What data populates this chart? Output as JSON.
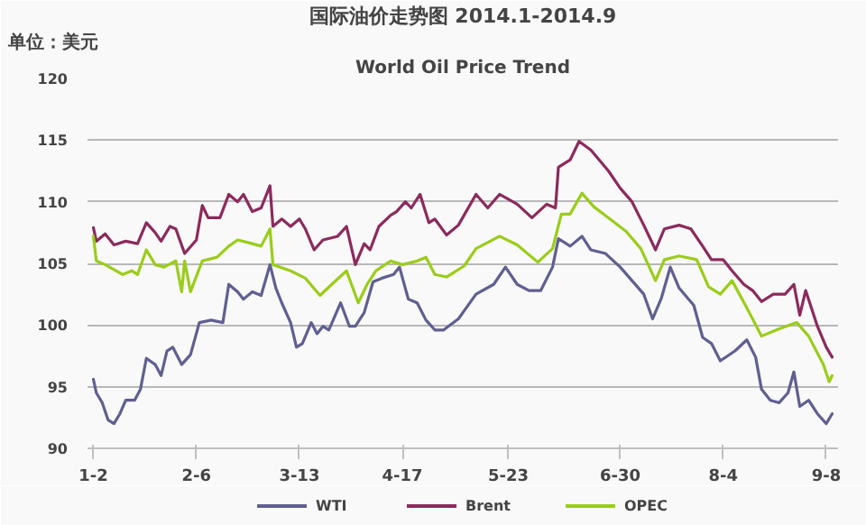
{
  "chart_data": {
    "type": "line",
    "title": "国际油价走势图 2014.1-2014.9",
    "subtitle": "World Oil Price Trend",
    "ylabel": "单位：美元",
    "xlim": [
      "2013-12-31",
      "2014-09-12"
    ],
    "xticks": [
      {
        "value": "2014-01-02",
        "label": "1-2"
      },
      {
        "value": "2014-02-06",
        "label": "2-6"
      },
      {
        "value": "2014-03-13",
        "label": "3-13"
      },
      {
        "value": "2014-04-17",
        "label": "4-17"
      },
      {
        "value": "2014-05-23",
        "label": "5-23"
      },
      {
        "value": "2014-06-30",
        "label": "6-30"
      },
      {
        "value": "2014-08-04",
        "label": "8-4"
      },
      {
        "value": "2014-09-08",
        "label": "9-8"
      }
    ],
    "ylim": [
      90,
      120
    ],
    "yticks": [
      90,
      95,
      100,
      105,
      110,
      115,
      120
    ],
    "grid": "y",
    "legend": "bottom",
    "series": [
      {
        "name": "WTI",
        "color": "#5f5f91",
        "x": [
          "2014-01-02",
          "2014-01-03",
          "2014-01-05",
          "2014-01-07",
          "2014-01-09",
          "2014-01-11",
          "2014-01-13",
          "2014-01-16",
          "2014-01-18",
          "2014-01-20",
          "2014-01-23",
          "2014-01-25",
          "2014-01-27",
          "2014-01-29",
          "2014-02-01",
          "2014-02-04",
          "2014-02-07",
          "2014-02-11",
          "2014-02-15",
          "2014-02-17",
          "2014-02-20",
          "2014-02-22",
          "2014-02-25",
          "2014-02-28",
          "2014-03-03",
          "2014-03-05",
          "2014-03-07",
          "2014-03-10",
          "2014-03-12",
          "2014-03-14",
          "2014-03-17",
          "2014-03-19",
          "2014-03-21",
          "2014-03-23",
          "2014-03-27",
          "2014-03-30",
          "2014-04-01",
          "2014-04-04",
          "2014-04-07",
          "2014-04-10",
          "2014-04-14",
          "2014-04-16",
          "2014-04-19",
          "2014-04-22",
          "2014-04-25",
          "2014-04-28",
          "2014-05-01",
          "2014-05-06",
          "2014-05-12",
          "2014-05-18",
          "2014-05-22",
          "2014-05-26",
          "2014-05-30",
          "2014-06-03",
          "2014-06-07",
          "2014-06-09",
          "2014-06-13",
          "2014-06-17",
          "2014-06-20",
          "2014-06-25",
          "2014-06-30",
          "2014-07-04",
          "2014-07-08",
          "2014-07-11",
          "2014-07-14",
          "2014-07-17",
          "2014-07-20",
          "2014-07-25",
          "2014-07-28",
          "2014-07-31",
          "2014-08-03",
          "2014-08-08",
          "2014-08-12",
          "2014-08-15",
          "2014-08-17",
          "2014-08-20",
          "2014-08-23",
          "2014-08-26",
          "2014-08-28",
          "2014-08-30",
          "2014-09-02",
          "2014-09-05",
          "2014-09-08",
          "2014-09-10"
        ],
        "values": [
          95.6,
          94.5,
          93.7,
          92.3,
          92.0,
          92.8,
          93.9,
          93.9,
          94.8,
          97.3,
          96.8,
          95.9,
          97.9,
          98.2,
          96.8,
          97.6,
          100.2,
          100.4,
          100.2,
          103.3,
          102.7,
          102.1,
          102.7,
          102.4,
          104.9,
          103.0,
          101.8,
          100.2,
          98.2,
          98.5,
          100.2,
          99.3,
          99.9,
          99.6,
          101.8,
          99.9,
          99.9,
          101.0,
          103.5,
          103.8,
          104.1,
          104.7,
          102.1,
          101.8,
          100.4,
          99.6,
          99.6,
          100.5,
          102.5,
          103.3,
          104.7,
          103.3,
          102.8,
          102.8,
          104.7,
          107.0,
          106.4,
          107.2,
          106.1,
          105.8,
          104.7,
          103.6,
          102.5,
          100.5,
          102.2,
          104.7,
          103.0,
          101.6,
          99.0,
          98.5,
          97.1,
          97.9,
          98.8,
          97.4,
          94.8,
          93.9,
          93.7,
          94.5,
          96.2,
          93.4,
          93.9,
          92.8,
          92.0,
          92.8
        ]
      },
      {
        "name": "Brent",
        "color": "#8c2a5c",
        "x": [
          "2014-01-02",
          "2014-01-03",
          "2014-01-06",
          "2014-01-09",
          "2014-01-13",
          "2014-01-17",
          "2014-01-20",
          "2014-01-23",
          "2014-01-25",
          "2014-01-28",
          "2014-01-30",
          "2014-02-02",
          "2014-02-06",
          "2014-02-08",
          "2014-02-10",
          "2014-02-14",
          "2014-02-17",
          "2014-02-20",
          "2014-02-22",
          "2014-02-25",
          "2014-02-28",
          "2014-03-03",
          "2014-03-04",
          "2014-03-07",
          "2014-03-10",
          "2014-03-13",
          "2014-03-15",
          "2014-03-18",
          "2014-03-21",
          "2014-03-26",
          "2014-03-29",
          "2014-04-01",
          "2014-04-04",
          "2014-04-06",
          "2014-04-09",
          "2014-04-13",
          "2014-04-15",
          "2014-04-18",
          "2014-04-20",
          "2014-04-23",
          "2014-04-26",
          "2014-04-28",
          "2014-05-02",
          "2014-05-06",
          "2014-05-12",
          "2014-05-16",
          "2014-05-20",
          "2014-05-26",
          "2014-05-31",
          "2014-06-05",
          "2014-06-08",
          "2014-06-09",
          "2014-06-13",
          "2014-06-16",
          "2014-06-20",
          "2014-06-26",
          "2014-06-30",
          "2014-07-04",
          "2014-07-08",
          "2014-07-12",
          "2014-07-15",
          "2014-07-20",
          "2014-07-24",
          "2014-07-28",
          "2014-07-31",
          "2014-08-04",
          "2014-08-07",
          "2014-08-11",
          "2014-08-14",
          "2014-08-17",
          "2014-08-21",
          "2014-08-25",
          "2014-08-28",
          "2014-08-30",
          "2014-09-01",
          "2014-09-05",
          "2014-09-08",
          "2014-09-10"
        ],
        "values": [
          107.9,
          106.8,
          107.4,
          106.5,
          106.8,
          106.6,
          108.3,
          107.5,
          106.8,
          108.0,
          107.8,
          105.8,
          106.9,
          109.7,
          108.7,
          108.7,
          110.6,
          110.0,
          110.6,
          109.2,
          109.5,
          111.3,
          108.0,
          108.6,
          108.0,
          108.6,
          107.8,
          106.1,
          106.9,
          107.2,
          108.0,
          104.9,
          106.6,
          106.1,
          108.0,
          108.9,
          109.2,
          110.0,
          109.5,
          110.6,
          108.3,
          108.6,
          107.3,
          108.1,
          110.6,
          109.5,
          110.6,
          109.8,
          108.7,
          109.8,
          109.5,
          112.8,
          113.4,
          114.9,
          114.2,
          112.5,
          111.1,
          110.0,
          108.1,
          106.1,
          107.8,
          108.1,
          107.8,
          106.4,
          105.3,
          105.3,
          104.4,
          103.3,
          102.8,
          101.9,
          102.5,
          102.5,
          103.3,
          100.8,
          102.8,
          99.9,
          98.2,
          97.4
        ]
      },
      {
        "name": "OPEC",
        "color": "#9acd1a",
        "x": [
          "2014-01-02",
          "2014-01-03",
          "2014-01-06",
          "2014-01-12",
          "2014-01-15",
          "2014-01-17",
          "2014-01-20",
          "2014-01-23",
          "2014-01-26",
          "2014-01-30",
          "2014-02-01",
          "2014-02-02",
          "2014-02-04",
          "2014-02-08",
          "2014-02-13",
          "2014-02-17",
          "2014-02-20",
          "2014-02-25",
          "2014-02-28",
          "2014-03-03",
          "2014-03-04",
          "2014-03-10",
          "2014-03-15",
          "2014-03-20",
          "2014-03-24",
          "2014-03-29",
          "2014-04-02",
          "2014-04-05",
          "2014-04-08",
          "2014-04-13",
          "2014-04-17",
          "2014-04-22",
          "2014-04-25",
          "2014-04-28",
          "2014-05-02",
          "2014-05-08",
          "2014-05-12",
          "2014-05-20",
          "2014-05-26",
          "2014-06-02",
          "2014-06-07",
          "2014-06-10",
          "2014-06-13",
          "2014-06-17",
          "2014-06-21",
          "2014-06-26",
          "2014-07-02",
          "2014-07-07",
          "2014-07-12",
          "2014-07-15",
          "2014-07-20",
          "2014-07-26",
          "2014-07-30",
          "2014-08-03",
          "2014-08-07",
          "2014-08-12",
          "2014-08-17",
          "2014-08-23",
          "2014-08-29",
          "2014-09-02",
          "2014-09-07",
          "2014-09-09",
          "2014-09-10"
        ],
        "values": [
          107.2,
          105.2,
          104.9,
          104.1,
          104.4,
          104.1,
          106.1,
          104.9,
          104.7,
          105.2,
          102.7,
          105.2,
          102.7,
          105.2,
          105.5,
          106.4,
          106.9,
          106.6,
          106.4,
          107.8,
          104.9,
          104.4,
          103.8,
          102.4,
          103.3,
          104.4,
          101.8,
          103.3,
          104.4,
          105.2,
          104.9,
          105.2,
          105.5,
          104.1,
          103.9,
          104.8,
          106.2,
          107.2,
          106.5,
          105.1,
          106.2,
          109.0,
          109.0,
          110.7,
          109.6,
          108.7,
          107.6,
          106.2,
          103.6,
          105.3,
          105.6,
          105.3,
          103.1,
          102.5,
          103.6,
          101.4,
          99.1,
          99.7,
          100.2,
          99.1,
          96.8,
          95.4,
          95.9
        ]
      }
    ]
  }
}
